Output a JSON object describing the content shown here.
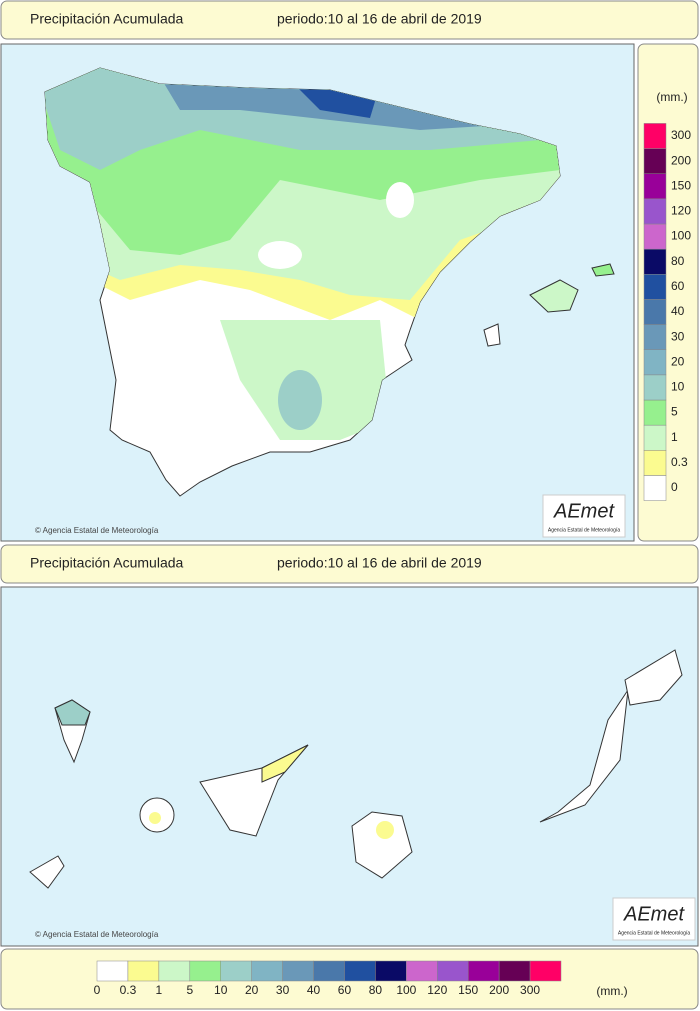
{
  "panels": [
    {
      "title": "Precipitación Acumulada",
      "period": "periodo:10 al 16 de abril de 2019",
      "credit": "© Agencia Estatal de Meteorología",
      "logo": {
        "name": "AEmet",
        "subtitle": "Agencia Estatal de Meteorología"
      }
    },
    {
      "title": "Precipitación Acumulada",
      "period": "periodo:10 al 16 de abril de 2019",
      "credit": "© Agencia Estatal de Meteorología",
      "logo": {
        "name": "AEmet",
        "subtitle": "Agencia Estatal de Meteorología"
      }
    }
  ],
  "legend": {
    "unit": "(mm.)",
    "items": [
      {
        "label": "0",
        "color": "#ffffff"
      },
      {
        "label": "0.3",
        "color": "#fbfb90"
      },
      {
        "label": "1",
        "color": "#ccf7c8"
      },
      {
        "label": "5",
        "color": "#96f08e"
      },
      {
        "label": "10",
        "color": "#9ccfc8"
      },
      {
        "label": "20",
        "color": "#80b4c4"
      },
      {
        "label": "30",
        "color": "#6a98b8"
      },
      {
        "label": "40",
        "color": "#4a78aa"
      },
      {
        "label": "60",
        "color": "#2050a0"
      },
      {
        "label": "80",
        "color": "#0a0a66"
      },
      {
        "label": "100",
        "color": "#cc66cc"
      },
      {
        "label": "120",
        "color": "#9955cc"
      },
      {
        "label": "150",
        "color": "#990099"
      },
      {
        "label": "200",
        "color": "#660055"
      },
      {
        "label": "300",
        "color": "#ff0066"
      }
    ]
  }
}
